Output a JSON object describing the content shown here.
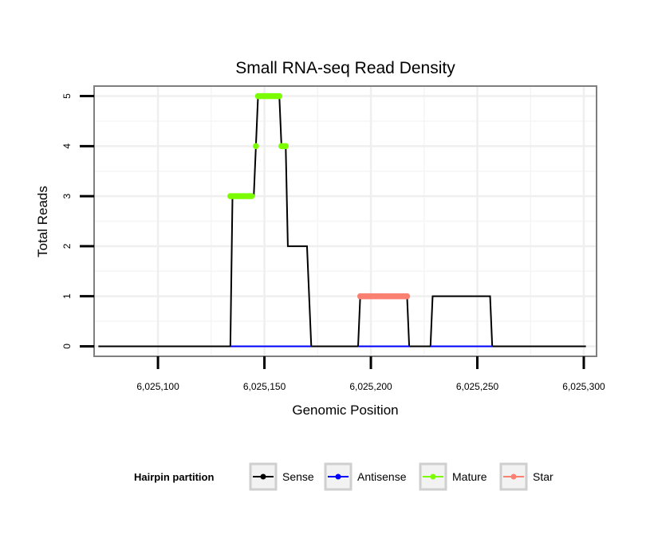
{
  "chart_data": {
    "type": "line",
    "title": "Small RNA-seq Read Density",
    "xlabel": "Genomic Position",
    "ylabel": "Total Reads",
    "xlim": [
      6025070,
      6025306
    ],
    "ylim": [
      -0.2,
      5.2
    ],
    "x_ticks": [
      6025100,
      6025150,
      6025200,
      6025250,
      6025300
    ],
    "x_tick_labels": [
      "6,025,100",
      "6,025,150",
      "6,025,200",
      "6,025,250",
      "6,025,300"
    ],
    "y_ticks": [
      0,
      1,
      2,
      3,
      4,
      5
    ],
    "y_tick_labels": [
      "0",
      "1",
      "2",
      "3",
      "4",
      "5"
    ],
    "grid": true,
    "legend": {
      "title": "Hairpin partition",
      "position": "bottom",
      "entries": [
        {
          "name": "Sense",
          "color": "#000000"
        },
        {
          "name": "Antisense",
          "color": "#0000ff"
        },
        {
          "name": "Mature",
          "color": "#7cfc00"
        },
        {
          "name": "Star",
          "color": "#fa8072"
        }
      ]
    },
    "series": [
      {
        "name": "Sense",
        "color": "#000000",
        "points": [
          [
            6025072,
            0
          ],
          [
            6025134,
            0
          ],
          [
            6025135,
            3
          ],
          [
            6025145,
            3
          ],
          [
            6025146,
            4
          ],
          [
            6025147,
            5
          ],
          [
            6025157,
            5
          ],
          [
            6025158,
            4
          ],
          [
            6025160,
            4
          ],
          [
            6025161,
            2
          ],
          [
            6025170,
            2
          ],
          [
            6025172,
            0
          ],
          [
            6025194,
            0
          ],
          [
            6025195,
            1
          ],
          [
            6025217,
            1
          ],
          [
            6025218,
            0
          ],
          [
            6025228,
            0
          ],
          [
            6025229,
            1
          ],
          [
            6025256,
            1
          ],
          [
            6025257,
            0
          ],
          [
            6025301,
            0
          ]
        ]
      },
      {
        "name": "Antisense",
        "color": "#0000ff",
        "points": [
          [
            6025134,
            0
          ],
          [
            6025172,
            0
          ],
          [
            6025194,
            0
          ],
          [
            6025218,
            0
          ],
          [
            6025228,
            0
          ],
          [
            6025257,
            0
          ]
        ]
      },
      {
        "name": "Mature",
        "color": "#7cfc00",
        "points": [
          [
            6025134,
            3
          ],
          [
            6025135,
            3
          ],
          [
            6025136,
            3
          ],
          [
            6025137,
            3
          ],
          [
            6025138,
            3
          ],
          [
            6025139,
            3
          ],
          [
            6025140,
            3
          ],
          [
            6025141,
            3
          ],
          [
            6025142,
            3
          ],
          [
            6025143,
            3
          ],
          [
            6025144,
            3
          ],
          [
            6025146,
            4
          ],
          [
            6025147,
            5
          ],
          [
            6025148,
            5
          ],
          [
            6025149,
            5
          ],
          [
            6025150,
            5
          ],
          [
            6025151,
            5
          ],
          [
            6025152,
            5
          ],
          [
            6025153,
            5
          ],
          [
            6025154,
            5
          ],
          [
            6025155,
            5
          ],
          [
            6025156,
            5
          ],
          [
            6025157,
            5
          ],
          [
            6025158,
            4
          ],
          [
            6025159,
            4
          ],
          [
            6025160,
            4
          ]
        ]
      },
      {
        "name": "Star",
        "color": "#fa8072",
        "points": [
          [
            6025195,
            1
          ],
          [
            6025196,
            1
          ],
          [
            6025197,
            1
          ],
          [
            6025198,
            1
          ],
          [
            6025199,
            1
          ],
          [
            6025200,
            1
          ],
          [
            6025201,
            1
          ],
          [
            6025202,
            1
          ],
          [
            6025203,
            1
          ],
          [
            6025204,
            1
          ],
          [
            6025205,
            1
          ],
          [
            6025206,
            1
          ],
          [
            6025207,
            1
          ],
          [
            6025208,
            1
          ],
          [
            6025209,
            1
          ],
          [
            6025210,
            1
          ],
          [
            6025211,
            1
          ],
          [
            6025212,
            1
          ],
          [
            6025213,
            1
          ],
          [
            6025214,
            1
          ],
          [
            6025215,
            1
          ],
          [
            6025216,
            1
          ],
          [
            6025217,
            1
          ]
        ]
      }
    ]
  }
}
